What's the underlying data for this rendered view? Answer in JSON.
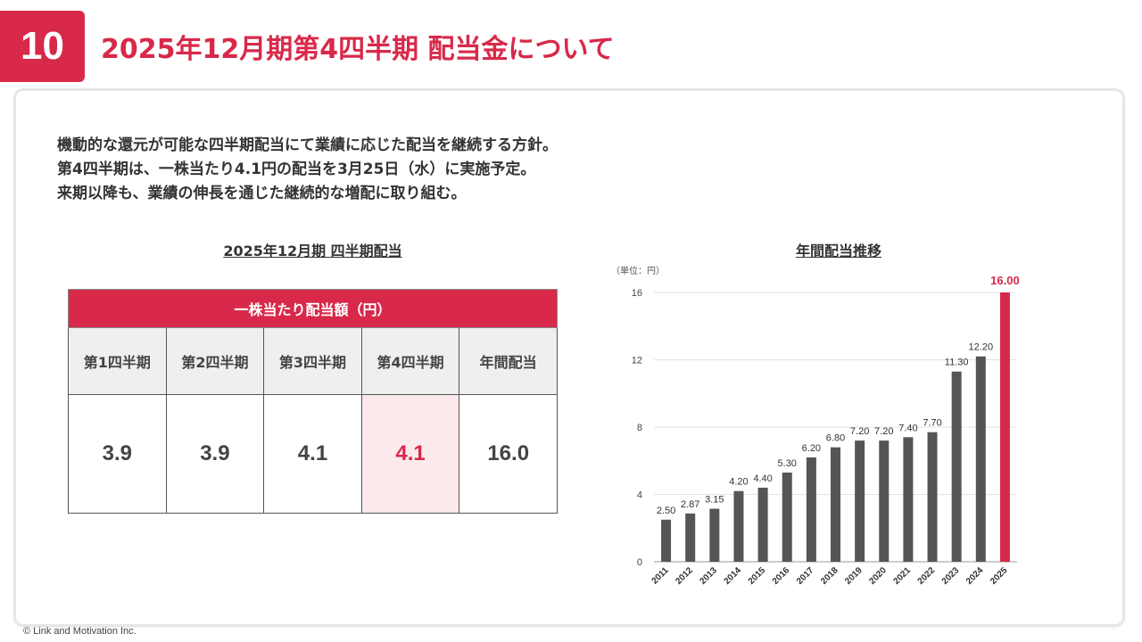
{
  "page": {
    "number": "10",
    "title": "2025年12月期第4四半期 配当金について",
    "footer": "© Link and Motivation Inc."
  },
  "intro": {
    "line1": "機動的な還元が可能な四半期配当にて業績に応じた配当を継続する方針。",
    "line2": "第4四半期は、一株当たり4.1円の配当を3月25日（水）に実施予定。",
    "line3": "来期以降も、業績の伸長を通じた継続的な増配に取り組む。"
  },
  "dividend_table": {
    "title": "2025年12月期 四半期配当",
    "header": "一株当たり配当額（円）",
    "columns": [
      "第1四半期",
      "第2四半期",
      "第3四半期",
      "第4四半期",
      "年間配当"
    ],
    "values": [
      "3.9",
      "3.9",
      "4.1",
      "4.1",
      "16.0"
    ],
    "highlight_index": 3
  },
  "chart_title": "年間配当推移",
  "chart_data": {
    "type": "bar",
    "title": "年間配当推移",
    "unit_label": "（単位：円）",
    "categories": [
      "2011",
      "2012",
      "2013",
      "2014",
      "2015",
      "2016",
      "2017",
      "2018",
      "2019",
      "2020",
      "2021",
      "2022",
      "2023",
      "2024",
      "2025"
    ],
    "values": [
      2.5,
      2.87,
      3.15,
      4.2,
      4.4,
      5.3,
      6.2,
      6.8,
      7.2,
      7.2,
      7.4,
      7.7,
      11.3,
      12.2,
      16.0
    ],
    "labels": [
      "2.50",
      "2.87",
      "3.15",
      "4.20",
      "4.40",
      "5.30",
      "6.20",
      "6.80",
      "7.20",
      "7.20",
      "7.40",
      "7.70",
      "11.30",
      "12.20",
      "16.00"
    ],
    "ylim": [
      0,
      16
    ],
    "yticks": [
      0,
      4,
      8,
      12,
      16
    ],
    "grid": true,
    "bar_color": "#555555",
    "highlight_color": "#d8294a",
    "highlight_index": 14
  }
}
